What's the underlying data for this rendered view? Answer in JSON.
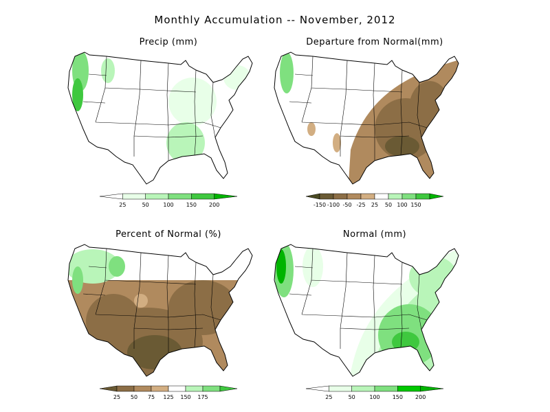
{
  "title": "Monthly Accumulation -- November, 2012",
  "colors": {
    "wet_1": "#e8ffe8",
    "wet_2": "#b9f5b9",
    "wet_3": "#7fe07f",
    "wet_4": "#3fc83f",
    "wet_5": "#00b400",
    "wet_6": "#008c00",
    "dry_1": "#d2ae82",
    "dry_2": "#b08a5e",
    "dry_3": "#8c6e46",
    "dry_4": "#6a5a34",
    "outline": "#000000"
  },
  "panels": [
    {
      "id": "precip",
      "title": "Precip (mm)",
      "colorbar": {
        "ticks": [
          "25",
          "50",
          "100",
          "150",
          "200"
        ],
        "colors": [
          "#ffffff",
          "#e8ffe8",
          "#b9f5b9",
          "#7fe07f",
          "#3fc83f",
          "#00b400"
        ]
      }
    },
    {
      "id": "departure",
      "title": "Departure from Normal(mm)",
      "colorbar": {
        "ticks": [
          "-150",
          "-100",
          "-50",
          "-25",
          "25",
          "50",
          "100",
          "150"
        ],
        "colors": [
          "#4a4a22",
          "#6a5a34",
          "#8c6e46",
          "#b08a5e",
          "#d2ae82",
          "#ffffff",
          "#b9f5b9",
          "#7fe07f",
          "#3fc83f",
          "#00b400"
        ]
      }
    },
    {
      "id": "percent",
      "title": "Percent of Normal (%)",
      "colorbar": {
        "ticks": [
          "25",
          "50",
          "75",
          "125",
          "150",
          "175"
        ],
        "colors": [
          "#6a5a34",
          "#8c6e46",
          "#b08a5e",
          "#d2ae82",
          "#ffffff",
          "#b9f5b9",
          "#7fe07f",
          "#3fc83f"
        ]
      }
    },
    {
      "id": "normal",
      "title": "Normal (mm)",
      "colorbar": {
        "ticks": [
          "25",
          "50",
          "100",
          "150",
          "200"
        ],
        "colors": [
          "#ffffff",
          "#e8ffe8",
          "#b9f5b9",
          "#7fe07f",
          "#00c800",
          "#00b400"
        ]
      }
    }
  ]
}
